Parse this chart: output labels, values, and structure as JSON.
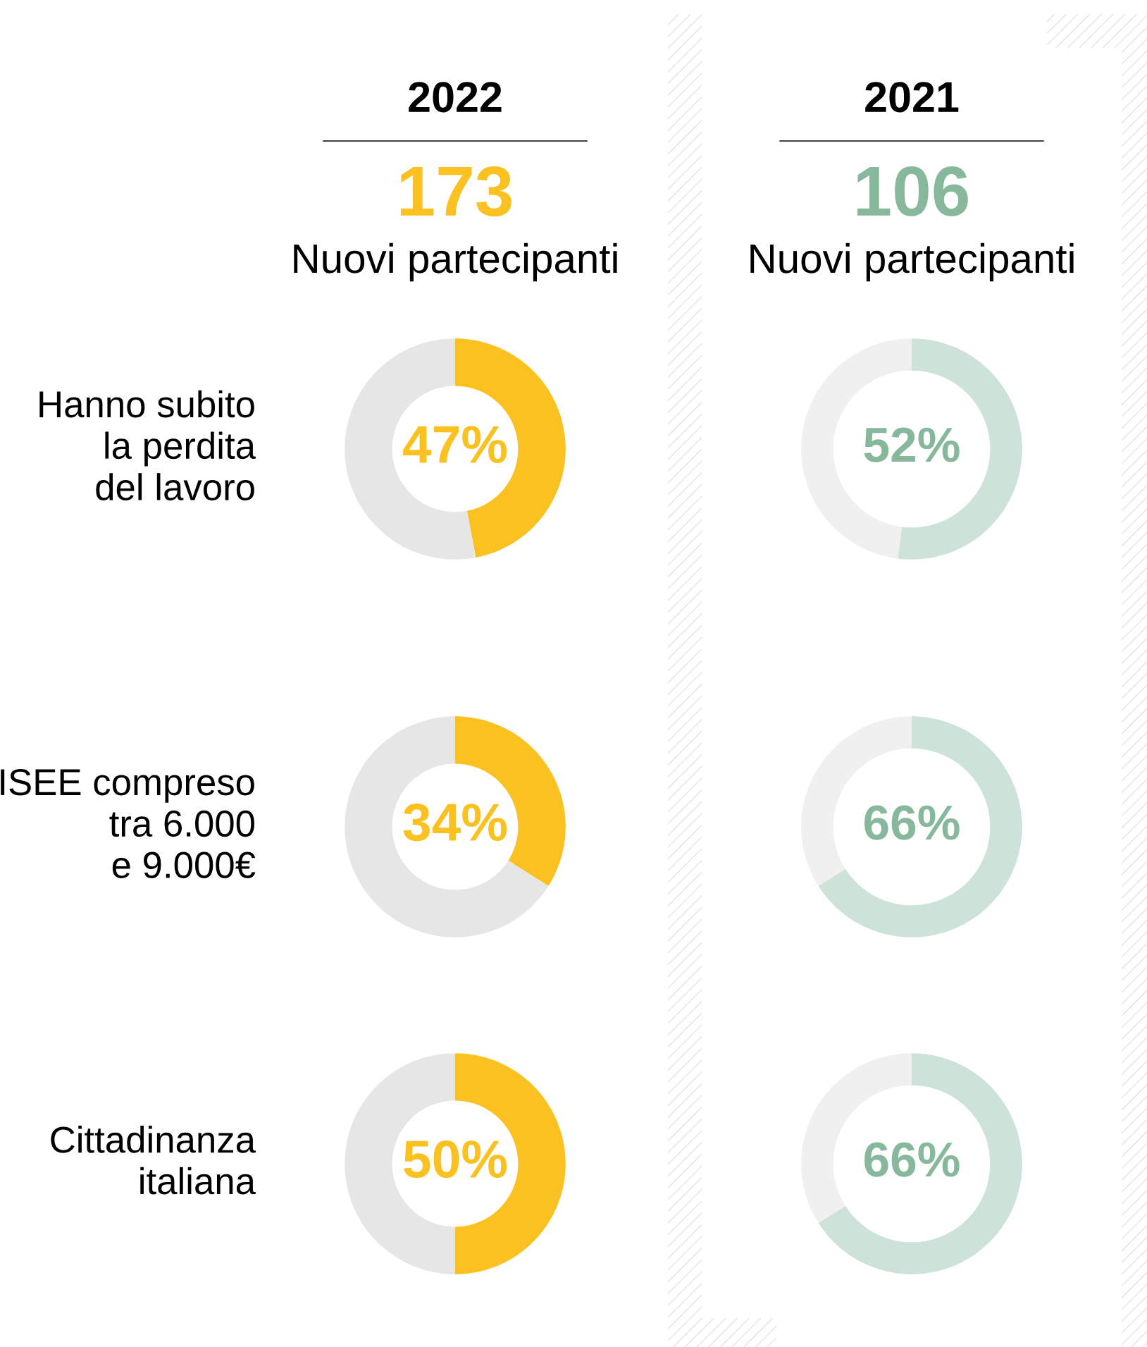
{
  "chart_data": [
    {
      "type": "other",
      "title": "2022",
      "color": "#fbc121",
      "annotations": [
        "173",
        "Nuovi partecipanti"
      ]
    },
    {
      "type": "other",
      "title": "2021",
      "color": "#88b89c",
      "annotations": [
        "106",
        "Nuovi partecipanti"
      ]
    },
    {
      "type": "donut",
      "ylabel": "Hanno subito\nla perdita\ndel lavoro",
      "categories": [
        null,
        null
      ],
      "values": [
        47,
        53
      ],
      "colors": [
        "#fbc121",
        "#e6e6e6"
      ],
      "value_labels": [
        "47%",
        null
      ]
    },
    {
      "type": "donut",
      "categories": [
        null,
        null
      ],
      "values": [
        52,
        48
      ],
      "colors": [
        "#cde2d8",
        "#f0f0f0"
      ],
      "value_labels": [
        "52%",
        null
      ]
    },
    {
      "type": "donut",
      "ylabel": "ISEE compreso\ntra 6.000\ne 9.000€",
      "categories": [
        null,
        null
      ],
      "values": [
        34,
        66
      ],
      "colors": [
        "#fbc121",
        "#e6e6e6"
      ],
      "value_labels": [
        "34%",
        null
      ]
    },
    {
      "type": "donut",
      "categories": [
        null,
        null
      ],
      "values": [
        66,
        34
      ],
      "colors": [
        "#cde2d8",
        "#f0f0f0"
      ],
      "value_labels": [
        "66%",
        null
      ]
    },
    {
      "type": "donut",
      "ylabel": "Cittadinanza\nitaliana",
      "categories": [
        null,
        null
      ],
      "values": [
        50,
        50
      ],
      "colors": [
        "#fbc121",
        "#e6e6e6"
      ],
      "value_labels": [
        "50%",
        null
      ]
    },
    {
      "type": "donut",
      "categories": [
        null,
        null
      ],
      "values": [
        66,
        34
      ],
      "colors": [
        "#cde2d8",
        "#f0f0f0"
      ],
      "value_labels": [
        "66%",
        null
      ]
    }
  ]
}
